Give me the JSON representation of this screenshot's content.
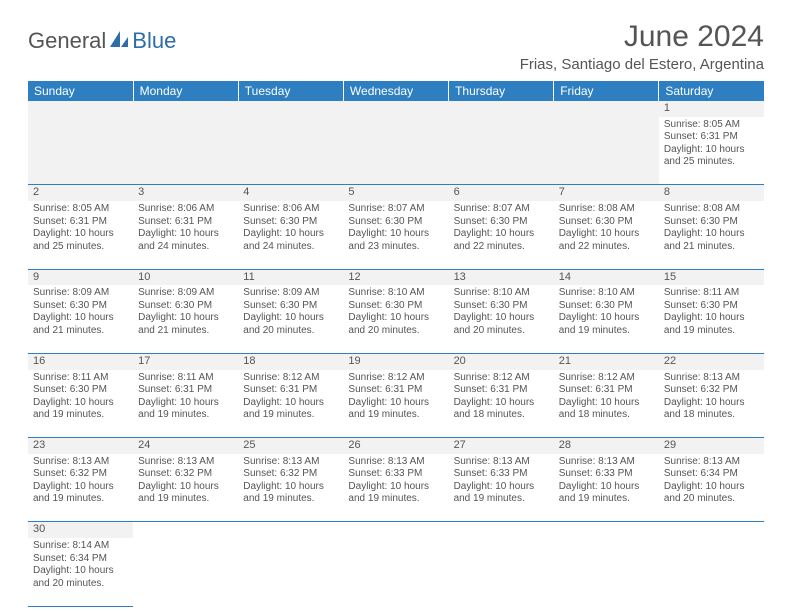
{
  "logo": {
    "part1": "General",
    "part2": "Blue"
  },
  "title": "June 2024",
  "location": "Frias, Santiago del Estero, Argentina",
  "colors": {
    "header_bg": "#2d7fc1",
    "header_text": "#ffffff",
    "daynum_bg": "#f2f2f2",
    "border": "#2d7fc1",
    "text": "#555555",
    "logo_blue": "#2d6da8"
  },
  "fonts": {
    "title_size": 30,
    "location_size": 15,
    "th_size": 12,
    "cell_size": 10,
    "daynum_size": 11
  },
  "weekdays": [
    "Sunday",
    "Monday",
    "Tuesday",
    "Wednesday",
    "Thursday",
    "Friday",
    "Saturday"
  ],
  "weeks": [
    [
      null,
      null,
      null,
      null,
      null,
      null,
      {
        "n": "1",
        "sr": "Sunrise: 8:05 AM",
        "ss": "Sunset: 6:31 PM",
        "d1": "Daylight: 10 hours",
        "d2": "and 25 minutes."
      }
    ],
    [
      {
        "n": "2",
        "sr": "Sunrise: 8:05 AM",
        "ss": "Sunset: 6:31 PM",
        "d1": "Daylight: 10 hours",
        "d2": "and 25 minutes."
      },
      {
        "n": "3",
        "sr": "Sunrise: 8:06 AM",
        "ss": "Sunset: 6:31 PM",
        "d1": "Daylight: 10 hours",
        "d2": "and 24 minutes."
      },
      {
        "n": "4",
        "sr": "Sunrise: 8:06 AM",
        "ss": "Sunset: 6:30 PM",
        "d1": "Daylight: 10 hours",
        "d2": "and 24 minutes."
      },
      {
        "n": "5",
        "sr": "Sunrise: 8:07 AM",
        "ss": "Sunset: 6:30 PM",
        "d1": "Daylight: 10 hours",
        "d2": "and 23 minutes."
      },
      {
        "n": "6",
        "sr": "Sunrise: 8:07 AM",
        "ss": "Sunset: 6:30 PM",
        "d1": "Daylight: 10 hours",
        "d2": "and 22 minutes."
      },
      {
        "n": "7",
        "sr": "Sunrise: 8:08 AM",
        "ss": "Sunset: 6:30 PM",
        "d1": "Daylight: 10 hours",
        "d2": "and 22 minutes."
      },
      {
        "n": "8",
        "sr": "Sunrise: 8:08 AM",
        "ss": "Sunset: 6:30 PM",
        "d1": "Daylight: 10 hours",
        "d2": "and 21 minutes."
      }
    ],
    [
      {
        "n": "9",
        "sr": "Sunrise: 8:09 AM",
        "ss": "Sunset: 6:30 PM",
        "d1": "Daylight: 10 hours",
        "d2": "and 21 minutes."
      },
      {
        "n": "10",
        "sr": "Sunrise: 8:09 AM",
        "ss": "Sunset: 6:30 PM",
        "d1": "Daylight: 10 hours",
        "d2": "and 21 minutes."
      },
      {
        "n": "11",
        "sr": "Sunrise: 8:09 AM",
        "ss": "Sunset: 6:30 PM",
        "d1": "Daylight: 10 hours",
        "d2": "and 20 minutes."
      },
      {
        "n": "12",
        "sr": "Sunrise: 8:10 AM",
        "ss": "Sunset: 6:30 PM",
        "d1": "Daylight: 10 hours",
        "d2": "and 20 minutes."
      },
      {
        "n": "13",
        "sr": "Sunrise: 8:10 AM",
        "ss": "Sunset: 6:30 PM",
        "d1": "Daylight: 10 hours",
        "d2": "and 20 minutes."
      },
      {
        "n": "14",
        "sr": "Sunrise: 8:10 AM",
        "ss": "Sunset: 6:30 PM",
        "d1": "Daylight: 10 hours",
        "d2": "and 19 minutes."
      },
      {
        "n": "15",
        "sr": "Sunrise: 8:11 AM",
        "ss": "Sunset: 6:30 PM",
        "d1": "Daylight: 10 hours",
        "d2": "and 19 minutes."
      }
    ],
    [
      {
        "n": "16",
        "sr": "Sunrise: 8:11 AM",
        "ss": "Sunset: 6:30 PM",
        "d1": "Daylight: 10 hours",
        "d2": "and 19 minutes."
      },
      {
        "n": "17",
        "sr": "Sunrise: 8:11 AM",
        "ss": "Sunset: 6:31 PM",
        "d1": "Daylight: 10 hours",
        "d2": "and 19 minutes."
      },
      {
        "n": "18",
        "sr": "Sunrise: 8:12 AM",
        "ss": "Sunset: 6:31 PM",
        "d1": "Daylight: 10 hours",
        "d2": "and 19 minutes."
      },
      {
        "n": "19",
        "sr": "Sunrise: 8:12 AM",
        "ss": "Sunset: 6:31 PM",
        "d1": "Daylight: 10 hours",
        "d2": "and 19 minutes."
      },
      {
        "n": "20",
        "sr": "Sunrise: 8:12 AM",
        "ss": "Sunset: 6:31 PM",
        "d1": "Daylight: 10 hours",
        "d2": "and 18 minutes."
      },
      {
        "n": "21",
        "sr": "Sunrise: 8:12 AM",
        "ss": "Sunset: 6:31 PM",
        "d1": "Daylight: 10 hours",
        "d2": "and 18 minutes."
      },
      {
        "n": "22",
        "sr": "Sunrise: 8:13 AM",
        "ss": "Sunset: 6:32 PM",
        "d1": "Daylight: 10 hours",
        "d2": "and 18 minutes."
      }
    ],
    [
      {
        "n": "23",
        "sr": "Sunrise: 8:13 AM",
        "ss": "Sunset: 6:32 PM",
        "d1": "Daylight: 10 hours",
        "d2": "and 19 minutes."
      },
      {
        "n": "24",
        "sr": "Sunrise: 8:13 AM",
        "ss": "Sunset: 6:32 PM",
        "d1": "Daylight: 10 hours",
        "d2": "and 19 minutes."
      },
      {
        "n": "25",
        "sr": "Sunrise: 8:13 AM",
        "ss": "Sunset: 6:32 PM",
        "d1": "Daylight: 10 hours",
        "d2": "and 19 minutes."
      },
      {
        "n": "26",
        "sr": "Sunrise: 8:13 AM",
        "ss": "Sunset: 6:33 PM",
        "d1": "Daylight: 10 hours",
        "d2": "and 19 minutes."
      },
      {
        "n": "27",
        "sr": "Sunrise: 8:13 AM",
        "ss": "Sunset: 6:33 PM",
        "d1": "Daylight: 10 hours",
        "d2": "and 19 minutes."
      },
      {
        "n": "28",
        "sr": "Sunrise: 8:13 AM",
        "ss": "Sunset: 6:33 PM",
        "d1": "Daylight: 10 hours",
        "d2": "and 19 minutes."
      },
      {
        "n": "29",
        "sr": "Sunrise: 8:13 AM",
        "ss": "Sunset: 6:34 PM",
        "d1": "Daylight: 10 hours",
        "d2": "and 20 minutes."
      }
    ],
    [
      {
        "n": "30",
        "sr": "Sunrise: 8:14 AM",
        "ss": "Sunset: 6:34 PM",
        "d1": "Daylight: 10 hours",
        "d2": "and 20 minutes."
      },
      null,
      null,
      null,
      null,
      null,
      null
    ]
  ]
}
